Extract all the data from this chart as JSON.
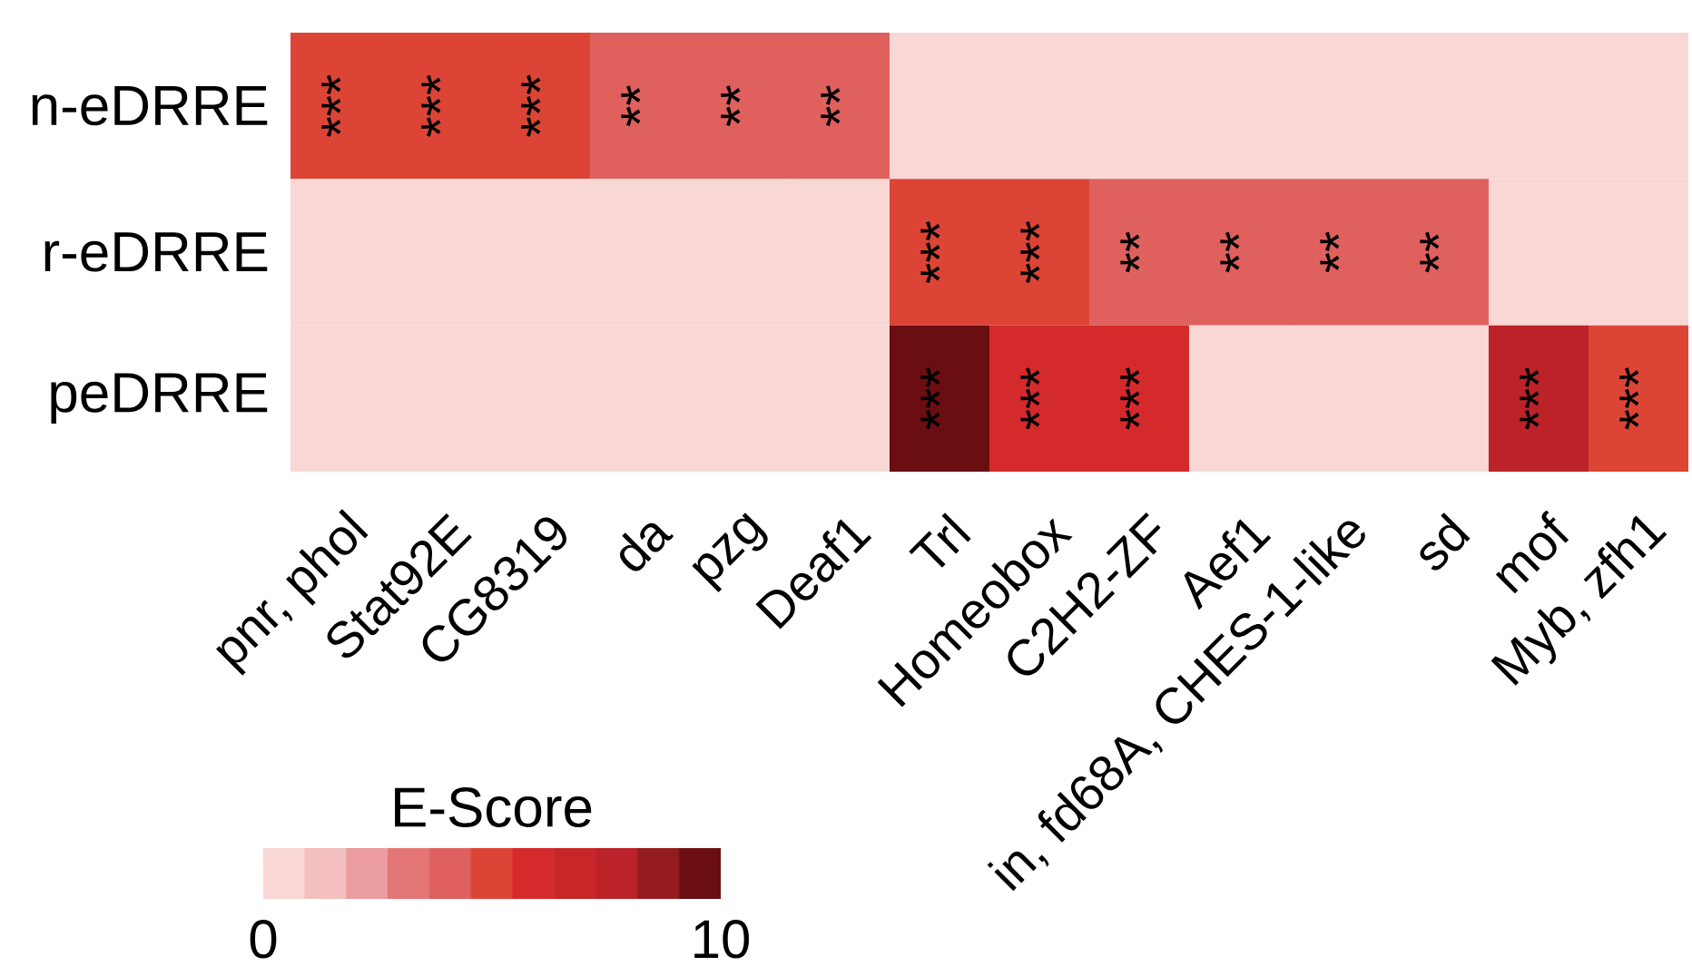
{
  "chart_data": {
    "type": "heatmap",
    "categories": [
      "pnr, phol",
      "Stat92E",
      "CG8319",
      "da",
      "pzg",
      "Deaf1",
      "Trl",
      "Homeobox",
      "C2H2-ZF",
      "Aef1",
      "in, fd68A, CHES-1-like",
      "sd",
      "mof",
      "Myb, zfh1"
    ],
    "y_categories": [
      "n-eDRRE",
      "r-eDRRE",
      "peDRRE"
    ],
    "cells": [
      [
        5,
        5,
        5,
        4,
        4,
        4,
        0,
        0,
        0,
        0,
        0,
        0,
        0,
        0
      ],
      [
        0,
        0,
        0,
        0,
        0,
        0,
        5,
        5,
        4,
        4,
        4,
        4,
        0,
        0
      ],
      [
        0,
        0,
        0,
        0,
        0,
        0,
        10,
        6,
        6,
        0,
        0,
        0,
        8,
        5
      ]
    ],
    "cell_labels": [
      [
        "***",
        "***",
        "***",
        "**",
        "**",
        "**",
        null,
        null,
        null,
        null,
        null,
        null,
        null,
        null
      ],
      [
        null,
        null,
        null,
        null,
        null,
        null,
        "***",
        "***",
        "**",
        "**",
        "**",
        "**",
        null,
        null
      ],
      [
        null,
        null,
        null,
        null,
        null,
        null,
        "***",
        "***",
        "***",
        null,
        null,
        null,
        "***",
        "***"
      ]
    ],
    "clabel": "E-Score",
    "clim": [
      0,
      10
    ],
    "cticks": [
      0,
      10
    ]
  }
}
